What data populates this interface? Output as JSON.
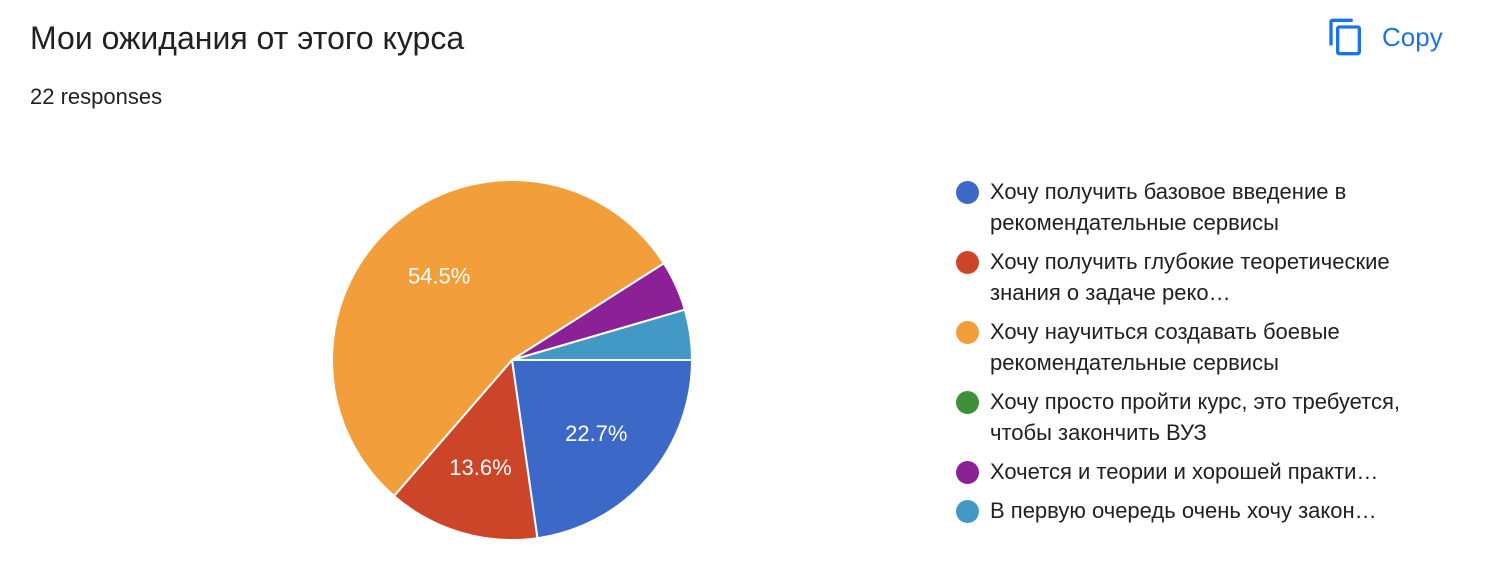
{
  "header": {
    "title": "Мои ожидания от этого курса",
    "responses": "22 responses",
    "copy_label": "Copy",
    "copy_icon": "copy-icon"
  },
  "chart_data": {
    "type": "pie",
    "categories": [
      "Хочу получить базовое введение в рекомендательные сервисы",
      "Хочу получить глубокие теоретические знания о задаче реко…",
      "Хочу научиться создавать боевые рекомендательные сервисы",
      "Хочу просто пройти курс, это требуется, чтобы закончить ВУЗ",
      "Хочется и теории и хорошей практи…",
      "В первую очередь очень хочу закон…"
    ],
    "values": [
      22.7,
      13.6,
      54.5,
      0,
      4.5,
      4.5
    ],
    "data_labels": [
      "22.7%",
      "13.6%",
      "54.5%",
      "",
      "",
      ""
    ],
    "colors": [
      "#3c68c7",
      "#cc4528",
      "#f29e3b",
      "#3e9139",
      "#8c2096",
      "#4299c6"
    ],
    "legend_position": "right"
  }
}
